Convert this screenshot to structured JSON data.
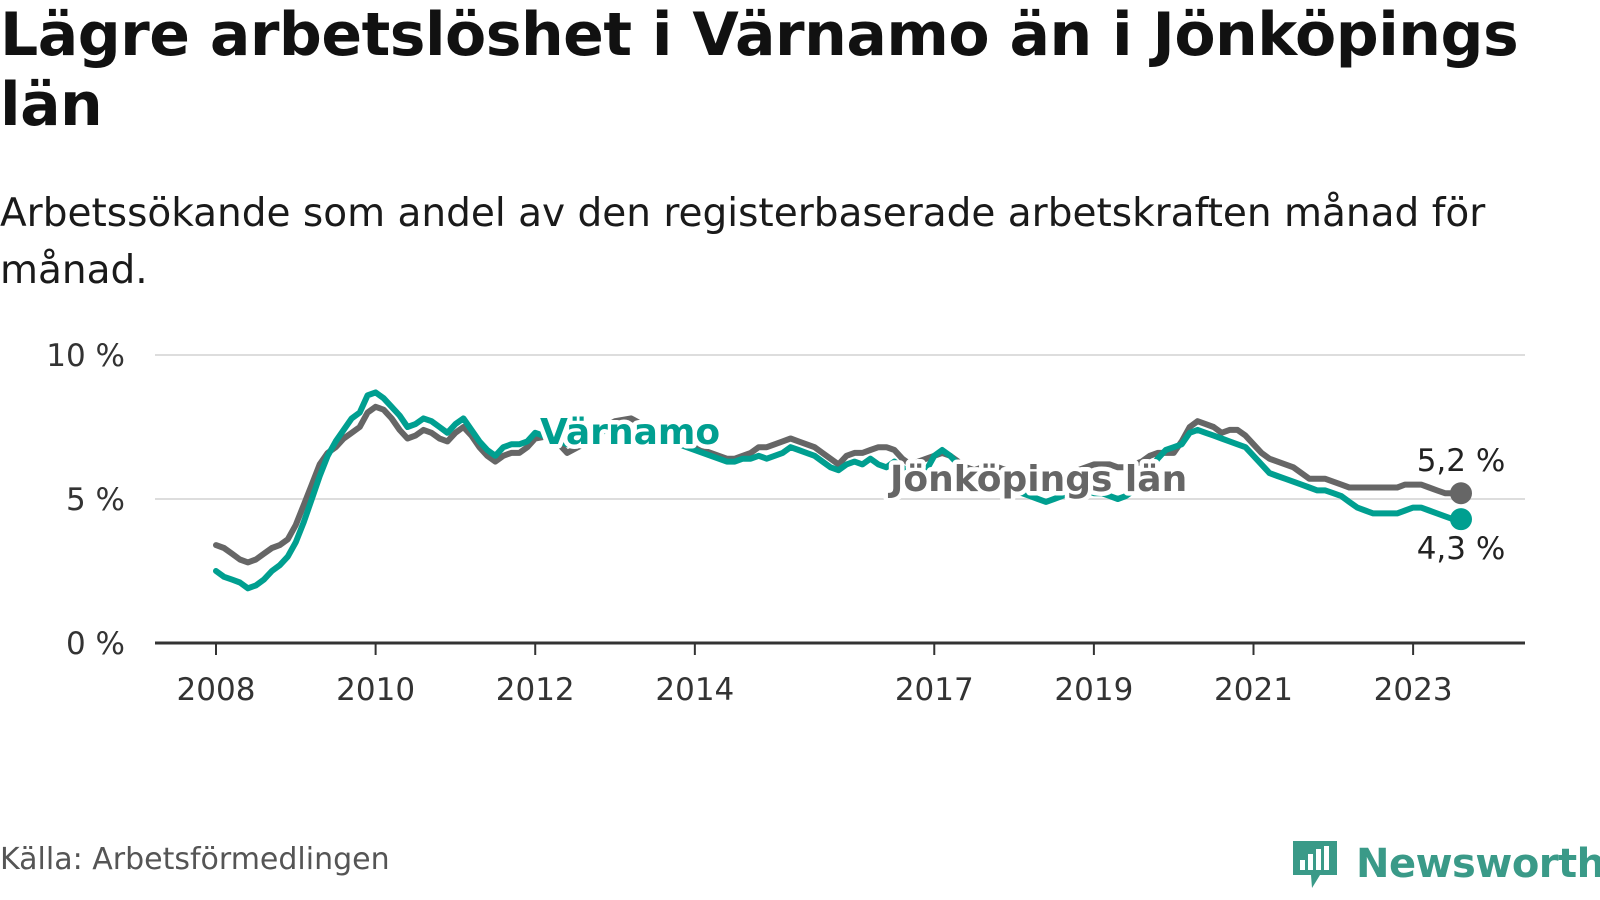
{
  "title": "Lägre arbetslöshet i Värnamo än i Jönköpings län",
  "subtitle": "Arbetssökande som andel av den registerbaserade arbetskraften månad för månad.",
  "source": "Källa: Arbetsförmedlingen",
  "brand": {
    "name": "Newsworthy",
    "icon": "newsworthy-logo-icon"
  },
  "colors": {
    "varnamo": "#009f90",
    "lan": "#666666",
    "grid": "#dddddd",
    "axis": "#333333",
    "brand": "#3a9a88"
  },
  "chart_data": {
    "type": "line",
    "title": "Lägre arbetslöshet i Värnamo än i Jönköpings län",
    "ylabel": "",
    "xlabel": "",
    "ylim": [
      0,
      10
    ],
    "yticks": [
      0,
      5,
      10
    ],
    "ytick_labels": [
      "0 %",
      "5 %",
      "10 %"
    ],
    "xlim": [
      2008.0,
      2023.6
    ],
    "xticks": [
      2008,
      2010,
      2012,
      2014,
      2017,
      2019,
      2021,
      2023
    ],
    "xtick_labels": [
      "2008",
      "2010",
      "2012",
      "2014",
      "2017",
      "2019",
      "2021",
      "2023"
    ],
    "series": [
      {
        "name": "Jönköpings län",
        "label": "Jönköpings län",
        "color": "#666666",
        "end_label": "5,2 %",
        "points": [
          [
            2008.0,
            3.4
          ],
          [
            2008.1,
            3.3
          ],
          [
            2008.2,
            3.1
          ],
          [
            2008.3,
            2.9
          ],
          [
            2008.4,
            2.8
          ],
          [
            2008.5,
            2.9
          ],
          [
            2008.6,
            3.1
          ],
          [
            2008.7,
            3.3
          ],
          [
            2008.8,
            3.4
          ],
          [
            2008.9,
            3.6
          ],
          [
            2009.0,
            4.1
          ],
          [
            2009.1,
            4.8
          ],
          [
            2009.2,
            5.5
          ],
          [
            2009.3,
            6.2
          ],
          [
            2009.4,
            6.6
          ],
          [
            2009.5,
            6.8
          ],
          [
            2009.6,
            7.1
          ],
          [
            2009.7,
            7.3
          ],
          [
            2009.8,
            7.5
          ],
          [
            2009.9,
            8.0
          ],
          [
            2010.0,
            8.2
          ],
          [
            2010.1,
            8.1
          ],
          [
            2010.2,
            7.8
          ],
          [
            2010.3,
            7.4
          ],
          [
            2010.4,
            7.1
          ],
          [
            2010.5,
            7.2
          ],
          [
            2010.6,
            7.4
          ],
          [
            2010.7,
            7.3
          ],
          [
            2010.8,
            7.1
          ],
          [
            2010.9,
            7.0
          ],
          [
            2011.0,
            7.3
          ],
          [
            2011.1,
            7.5
          ],
          [
            2011.2,
            7.2
          ],
          [
            2011.3,
            6.8
          ],
          [
            2011.4,
            6.5
          ],
          [
            2011.5,
            6.3
          ],
          [
            2011.6,
            6.5
          ],
          [
            2011.7,
            6.6
          ],
          [
            2011.8,
            6.6
          ],
          [
            2011.9,
            6.8
          ],
          [
            2012.0,
            7.1
          ],
          [
            2012.2,
            7.2
          ],
          [
            2012.3,
            6.9
          ],
          [
            2012.4,
            6.6
          ],
          [
            2012.6,
            6.9
          ],
          [
            2012.8,
            7.4
          ],
          [
            2013.0,
            7.7
          ],
          [
            2013.2,
            7.8
          ],
          [
            2013.4,
            7.5
          ],
          [
            2013.6,
            7.2
          ],
          [
            2013.8,
            7.0
          ],
          [
            2014.0,
            6.8
          ],
          [
            2014.2,
            6.6
          ],
          [
            2014.4,
            6.4
          ],
          [
            2014.5,
            6.4
          ],
          [
            2014.6,
            6.5
          ],
          [
            2014.7,
            6.6
          ],
          [
            2014.8,
            6.8
          ],
          [
            2014.9,
            6.8
          ],
          [
            2015.0,
            6.9
          ],
          [
            2015.1,
            7.0
          ],
          [
            2015.2,
            7.1
          ],
          [
            2015.3,
            7.0
          ],
          [
            2015.4,
            6.9
          ],
          [
            2015.5,
            6.8
          ],
          [
            2015.6,
            6.6
          ],
          [
            2015.7,
            6.4
          ],
          [
            2015.8,
            6.2
          ],
          [
            2015.9,
            6.5
          ],
          [
            2016.0,
            6.6
          ],
          [
            2016.1,
            6.6
          ],
          [
            2016.2,
            6.7
          ],
          [
            2016.3,
            6.8
          ],
          [
            2016.4,
            6.8
          ],
          [
            2016.5,
            6.7
          ],
          [
            2016.6,
            6.4
          ],
          [
            2016.7,
            6.2
          ],
          [
            2016.8,
            6.3
          ],
          [
            2016.9,
            6.4
          ],
          [
            2017.0,
            6.5
          ],
          [
            2017.1,
            6.6
          ],
          [
            2017.2,
            6.5
          ],
          [
            2017.3,
            6.3
          ],
          [
            2017.4,
            6.1
          ],
          [
            2017.5,
            6.0
          ],
          [
            2017.6,
            6.1
          ],
          [
            2017.7,
            6.2
          ],
          [
            2017.8,
            6.1
          ],
          [
            2017.9,
            6.0
          ],
          [
            2018.0,
            5.9
          ],
          [
            2018.1,
            5.8
          ],
          [
            2018.2,
            5.7
          ],
          [
            2018.3,
            5.6
          ],
          [
            2018.4,
            5.6
          ],
          [
            2018.5,
            5.7
          ],
          [
            2018.6,
            5.8
          ],
          [
            2018.7,
            5.9
          ],
          [
            2018.8,
            6.0
          ],
          [
            2018.9,
            6.1
          ],
          [
            2019.0,
            6.2
          ],
          [
            2019.1,
            6.2
          ],
          [
            2019.2,
            6.2
          ],
          [
            2019.3,
            6.1
          ],
          [
            2019.4,
            6.1
          ],
          [
            2019.5,
            6.2
          ],
          [
            2019.6,
            6.3
          ],
          [
            2019.7,
            6.5
          ],
          [
            2019.8,
            6.6
          ],
          [
            2019.9,
            6.6
          ],
          [
            2020.0,
            6.6
          ],
          [
            2020.1,
            7.0
          ],
          [
            2020.2,
            7.5
          ],
          [
            2020.3,
            7.7
          ],
          [
            2020.4,
            7.6
          ],
          [
            2020.5,
            7.5
          ],
          [
            2020.6,
            7.3
          ],
          [
            2020.7,
            7.4
          ],
          [
            2020.8,
            7.4
          ],
          [
            2020.9,
            7.2
          ],
          [
            2021.0,
            6.9
          ],
          [
            2021.1,
            6.6
          ],
          [
            2021.2,
            6.4
          ],
          [
            2021.3,
            6.3
          ],
          [
            2021.4,
            6.2
          ],
          [
            2021.5,
            6.1
          ],
          [
            2021.6,
            5.9
          ],
          [
            2021.7,
            5.7
          ],
          [
            2021.8,
            5.7
          ],
          [
            2021.9,
            5.7
          ],
          [
            2022.0,
            5.6
          ],
          [
            2022.1,
            5.5
          ],
          [
            2022.2,
            5.4
          ],
          [
            2022.3,
            5.4
          ],
          [
            2022.4,
            5.4
          ],
          [
            2022.5,
            5.4
          ],
          [
            2022.6,
            5.4
          ],
          [
            2022.7,
            5.4
          ],
          [
            2022.8,
            5.4
          ],
          [
            2022.9,
            5.5
          ],
          [
            2023.0,
            5.5
          ],
          [
            2023.1,
            5.5
          ],
          [
            2023.2,
            5.4
          ],
          [
            2023.3,
            5.3
          ],
          [
            2023.4,
            5.2
          ],
          [
            2023.5,
            5.2
          ],
          [
            2023.6,
            5.2
          ]
        ]
      },
      {
        "name": "Värnamo",
        "label": "Värnamo",
        "color": "#009f90",
        "end_label": "4,3 %",
        "points": [
          [
            2008.0,
            2.5
          ],
          [
            2008.1,
            2.3
          ],
          [
            2008.2,
            2.2
          ],
          [
            2008.3,
            2.1
          ],
          [
            2008.4,
            1.9
          ],
          [
            2008.5,
            2.0
          ],
          [
            2008.6,
            2.2
          ],
          [
            2008.7,
            2.5
          ],
          [
            2008.8,
            2.7
          ],
          [
            2008.9,
            3.0
          ],
          [
            2009.0,
            3.5
          ],
          [
            2009.1,
            4.2
          ],
          [
            2009.2,
            5.0
          ],
          [
            2009.3,
            5.8
          ],
          [
            2009.4,
            6.5
          ],
          [
            2009.5,
            7.0
          ],
          [
            2009.6,
            7.4
          ],
          [
            2009.7,
            7.8
          ],
          [
            2009.8,
            8.0
          ],
          [
            2009.9,
            8.6
          ],
          [
            2010.0,
            8.7
          ],
          [
            2010.1,
            8.5
          ],
          [
            2010.2,
            8.2
          ],
          [
            2010.3,
            7.9
          ],
          [
            2010.4,
            7.5
          ],
          [
            2010.5,
            7.6
          ],
          [
            2010.6,
            7.8
          ],
          [
            2010.7,
            7.7
          ],
          [
            2010.8,
            7.5
          ],
          [
            2010.9,
            7.3
          ],
          [
            2011.0,
            7.6
          ],
          [
            2011.1,
            7.8
          ],
          [
            2011.2,
            7.4
          ],
          [
            2011.3,
            7.0
          ],
          [
            2011.4,
            6.7
          ],
          [
            2011.5,
            6.5
          ],
          [
            2011.6,
            6.8
          ],
          [
            2011.7,
            6.9
          ],
          [
            2011.8,
            6.9
          ],
          [
            2011.9,
            7.0
          ],
          [
            2012.0,
            7.3
          ],
          [
            2012.2,
            7.1
          ],
          [
            2012.4,
            6.9
          ],
          [
            2012.6,
            7.1
          ],
          [
            2012.8,
            7.3
          ],
          [
            2013.0,
            7.5
          ],
          [
            2013.2,
            7.4
          ],
          [
            2013.4,
            7.2
          ],
          [
            2013.6,
            7.0
          ],
          [
            2013.8,
            6.9
          ],
          [
            2014.0,
            6.7
          ],
          [
            2014.2,
            6.5
          ],
          [
            2014.4,
            6.3
          ],
          [
            2014.5,
            6.3
          ],
          [
            2014.6,
            6.4
          ],
          [
            2014.7,
            6.4
          ],
          [
            2014.8,
            6.5
          ],
          [
            2014.9,
            6.4
          ],
          [
            2015.0,
            6.5
          ],
          [
            2015.1,
            6.6
          ],
          [
            2015.2,
            6.8
          ],
          [
            2015.3,
            6.7
          ],
          [
            2015.4,
            6.6
          ],
          [
            2015.5,
            6.5
          ],
          [
            2015.6,
            6.3
          ],
          [
            2015.7,
            6.1
          ],
          [
            2015.8,
            6.0
          ],
          [
            2015.9,
            6.2
          ],
          [
            2016.0,
            6.3
          ],
          [
            2016.1,
            6.2
          ],
          [
            2016.2,
            6.4
          ],
          [
            2016.3,
            6.2
          ],
          [
            2016.4,
            6.1
          ],
          [
            2016.5,
            6.3
          ],
          [
            2016.6,
            6.1
          ],
          [
            2016.7,
            5.9
          ],
          [
            2016.8,
            5.8
          ],
          [
            2016.9,
            6.0
          ],
          [
            2017.0,
            6.5
          ],
          [
            2017.1,
            6.7
          ],
          [
            2017.2,
            6.5
          ],
          [
            2017.3,
            6.2
          ],
          [
            2017.4,
            6.0
          ],
          [
            2017.5,
            5.7
          ],
          [
            2017.6,
            5.6
          ],
          [
            2017.7,
            5.5
          ],
          [
            2017.8,
            5.5
          ],
          [
            2017.9,
            5.4
          ],
          [
            2018.0,
            5.3
          ],
          [
            2018.1,
            5.2
          ],
          [
            2018.2,
            5.1
          ],
          [
            2018.3,
            5.0
          ],
          [
            2018.4,
            4.9
          ],
          [
            2018.5,
            5.0
          ],
          [
            2018.6,
            5.1
          ],
          [
            2018.7,
            5.2
          ],
          [
            2018.8,
            5.3
          ],
          [
            2018.9,
            5.3
          ],
          [
            2019.0,
            5.2
          ],
          [
            2019.1,
            5.2
          ],
          [
            2019.2,
            5.1
          ],
          [
            2019.3,
            5.0
          ],
          [
            2019.4,
            5.1
          ],
          [
            2019.5,
            5.3
          ],
          [
            2019.6,
            5.6
          ],
          [
            2019.7,
            6.0
          ],
          [
            2019.8,
            6.4
          ],
          [
            2019.9,
            6.7
          ],
          [
            2020.0,
            6.8
          ],
          [
            2020.1,
            6.9
          ],
          [
            2020.2,
            7.3
          ],
          [
            2020.3,
            7.4
          ],
          [
            2020.4,
            7.3
          ],
          [
            2020.5,
            7.2
          ],
          [
            2020.6,
            7.1
          ],
          [
            2020.7,
            7.0
          ],
          [
            2020.8,
            6.9
          ],
          [
            2020.9,
            6.8
          ],
          [
            2021.0,
            6.5
          ],
          [
            2021.1,
            6.2
          ],
          [
            2021.2,
            5.9
          ],
          [
            2021.3,
            5.8
          ],
          [
            2021.4,
            5.7
          ],
          [
            2021.5,
            5.6
          ],
          [
            2021.6,
            5.5
          ],
          [
            2021.7,
            5.4
          ],
          [
            2021.8,
            5.3
          ],
          [
            2021.9,
            5.3
          ],
          [
            2022.0,
            5.2
          ],
          [
            2022.1,
            5.1
          ],
          [
            2022.2,
            4.9
          ],
          [
            2022.3,
            4.7
          ],
          [
            2022.4,
            4.6
          ],
          [
            2022.5,
            4.5
          ],
          [
            2022.6,
            4.5
          ],
          [
            2022.7,
            4.5
          ],
          [
            2022.8,
            4.5
          ],
          [
            2022.9,
            4.6
          ],
          [
            2023.0,
            4.7
          ],
          [
            2023.1,
            4.7
          ],
          [
            2023.2,
            4.6
          ],
          [
            2023.3,
            4.5
          ],
          [
            2023.4,
            4.4
          ],
          [
            2023.5,
            4.3
          ],
          [
            2023.6,
            4.3
          ]
        ]
      }
    ]
  }
}
